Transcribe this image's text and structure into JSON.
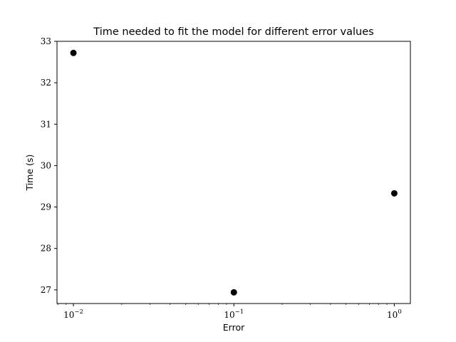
{
  "chart_data": {
    "type": "scatter",
    "title": "Time needed to fit the model for different error values",
    "xlabel": "Error",
    "ylabel": "Time (s)",
    "x_scale": "log",
    "xlim": [
      0.0079,
      1.26
    ],
    "ylim": [
      26.67,
      33.0
    ],
    "grid": false,
    "x": [
      0.01,
      0.1,
      1.0
    ],
    "y": [
      32.72,
      26.94,
      29.33
    ],
    "marker_color": "#000000",
    "x_ticks": [
      {
        "value": 0.01,
        "base": "10",
        "exp": "−2"
      },
      {
        "value": 0.1,
        "base": "10",
        "exp": "−1"
      },
      {
        "value": 1.0,
        "base": "10",
        "exp": "0"
      }
    ],
    "y_ticks": [
      "27",
      "28",
      "29",
      "30",
      "31",
      "32",
      "33"
    ]
  }
}
